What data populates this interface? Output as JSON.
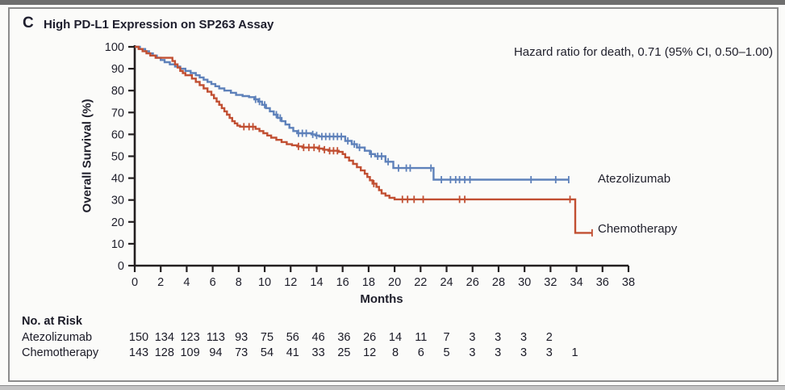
{
  "panel": {
    "letter": "C",
    "title": "High PD-L1 Expression on SP263 Assay"
  },
  "annotation": {
    "hazard_ratio": "Hazard ratio for death, 0.71 (95% CI, 0.50–1.00)"
  },
  "colors": {
    "atezolizumab": "#5e81ba",
    "chemotherapy": "#c14f32",
    "axis": "#231f20",
    "text": "#1f1f2b",
    "frame": "#8c8c8c"
  },
  "chart_data": {
    "type": "line",
    "subtype": "kaplan-meier-step",
    "xlabel": "Months",
    "ylabel": "Overall Survival (%)",
    "xlim": [
      0,
      38
    ],
    "ylim": [
      0,
      100
    ],
    "xtick_step": 2,
    "ytick_step": 10,
    "grid": false,
    "legend_position": "curve-end-labels",
    "series": [
      {
        "name": "Atezolizumab",
        "color": "#5e81ba",
        "points": [
          [
            0,
            100
          ],
          [
            0.4,
            99
          ],
          [
            0.8,
            98
          ],
          [
            1.1,
            97
          ],
          [
            1.4,
            96
          ],
          [
            1.7,
            95
          ],
          [
            2.0,
            94
          ],
          [
            2.3,
            93
          ],
          [
            2.7,
            92
          ],
          [
            3.1,
            91
          ],
          [
            3.5,
            90
          ],
          [
            3.9,
            89
          ],
          [
            4.3,
            88
          ],
          [
            4.7,
            87
          ],
          [
            5.0,
            86
          ],
          [
            5.3,
            85
          ],
          [
            5.6,
            84
          ],
          [
            5.9,
            83
          ],
          [
            6.2,
            82
          ],
          [
            6.5,
            81
          ],
          [
            6.9,
            80
          ],
          [
            7.4,
            79
          ],
          [
            7.8,
            78
          ],
          [
            8.3,
            77.5
          ],
          [
            8.8,
            77
          ],
          [
            9.2,
            76
          ],
          [
            9.5,
            75
          ],
          [
            9.8,
            73.5
          ],
          [
            10.1,
            72
          ],
          [
            10.4,
            70.5
          ],
          [
            10.7,
            69
          ],
          [
            11.0,
            67.5
          ],
          [
            11.3,
            66
          ],
          [
            11.6,
            64.5
          ],
          [
            11.9,
            63
          ],
          [
            12.2,
            61.5
          ],
          [
            12.5,
            60.5
          ],
          [
            13.6,
            60
          ],
          [
            13.9,
            59.5
          ],
          [
            14.2,
            59
          ],
          [
            16.2,
            57
          ],
          [
            16.7,
            55.5
          ],
          [
            17.1,
            54
          ],
          [
            17.7,
            52.5
          ],
          [
            18.1,
            51
          ],
          [
            18.5,
            50
          ],
          [
            19.3,
            47.5
          ],
          [
            19.9,
            44.6
          ],
          [
            23.0,
            39.3
          ],
          [
            33.4,
            39.3
          ]
        ],
        "censor_months": [
          9.3,
          9.6,
          10.0,
          10.9,
          11.2,
          12.6,
          12.9,
          13.2,
          13.7,
          14.0,
          14.4,
          14.7,
          15.0,
          15.3,
          15.6,
          15.9,
          16.4,
          16.9,
          17.3,
          18.2,
          18.7,
          19.0,
          19.5,
          20.3,
          20.9,
          21.2,
          22.8,
          23.6,
          24.3,
          24.7,
          25.0,
          25.4,
          25.8,
          30.5,
          32.4,
          33.4
        ]
      },
      {
        "name": "Chemotherapy",
        "color": "#c14f32",
        "points": [
          [
            0,
            100
          ],
          [
            0.3,
            99
          ],
          [
            0.6,
            98
          ],
          [
            0.9,
            97
          ],
          [
            1.2,
            96
          ],
          [
            1.6,
            95
          ],
          [
            2.9,
            93.5
          ],
          [
            3.1,
            92
          ],
          [
            3.3,
            90.5
          ],
          [
            3.5,
            89
          ],
          [
            3.7,
            88
          ],
          [
            3.9,
            87
          ],
          [
            4.4,
            85.5
          ],
          [
            4.7,
            84
          ],
          [
            5.0,
            82.5
          ],
          [
            5.3,
            81
          ],
          [
            5.6,
            79.5
          ],
          [
            5.9,
            78
          ],
          [
            6.1,
            76.5
          ],
          [
            6.3,
            75
          ],
          [
            6.5,
            73.5
          ],
          [
            6.7,
            72
          ],
          [
            6.9,
            70.5
          ],
          [
            7.1,
            69
          ],
          [
            7.3,
            67.5
          ],
          [
            7.5,
            66
          ],
          [
            7.7,
            65
          ],
          [
            7.9,
            64
          ],
          [
            8.1,
            63.5
          ],
          [
            9.3,
            62.5
          ],
          [
            9.6,
            61.5
          ],
          [
            9.9,
            60.5
          ],
          [
            10.2,
            59.5
          ],
          [
            10.5,
            58.5
          ],
          [
            10.9,
            57.5
          ],
          [
            11.3,
            56.5
          ],
          [
            11.7,
            55.5
          ],
          [
            12.1,
            55
          ],
          [
            12.5,
            54.5
          ],
          [
            12.9,
            54
          ],
          [
            14.1,
            53.5
          ],
          [
            14.5,
            53
          ],
          [
            14.9,
            52.5
          ],
          [
            15.7,
            52
          ],
          [
            16.0,
            51
          ],
          [
            16.2,
            49.5
          ],
          [
            16.5,
            48
          ],
          [
            16.8,
            46.5
          ],
          [
            17.1,
            45
          ],
          [
            17.4,
            43.5
          ],
          [
            17.7,
            42
          ],
          [
            17.9,
            40.5
          ],
          [
            18.1,
            39
          ],
          [
            18.3,
            37.5
          ],
          [
            18.6,
            36
          ],
          [
            18.8,
            34.5
          ],
          [
            19.0,
            33
          ],
          [
            19.3,
            32
          ],
          [
            19.6,
            31
          ],
          [
            20.0,
            30.3
          ],
          [
            33.9,
            30.3
          ],
          [
            33.9,
            15
          ],
          [
            35.2,
            15
          ]
        ],
        "censor_months": [
          8.4,
          8.8,
          9.1,
          12.6,
          13.0,
          13.4,
          13.8,
          14.2,
          14.6,
          15.0,
          15.3,
          15.6,
          18.4,
          20.6,
          21.0,
          21.5,
          22.2,
          25.0,
          25.4,
          33.5,
          35.2
        ]
      }
    ]
  },
  "risk_table": {
    "title": "No. at Risk",
    "rows": [
      {
        "label": "Atezolizumab",
        "values": [
          150,
          134,
          123,
          113,
          93,
          75,
          56,
          46,
          36,
          26,
          14,
          11,
          7,
          3,
          3,
          3,
          2
        ]
      },
      {
        "label": "Chemotherapy",
        "values": [
          143,
          128,
          109,
          94,
          73,
          54,
          41,
          33,
          25,
          12,
          8,
          6,
          5,
          3,
          3,
          3,
          3,
          1
        ]
      }
    ]
  }
}
